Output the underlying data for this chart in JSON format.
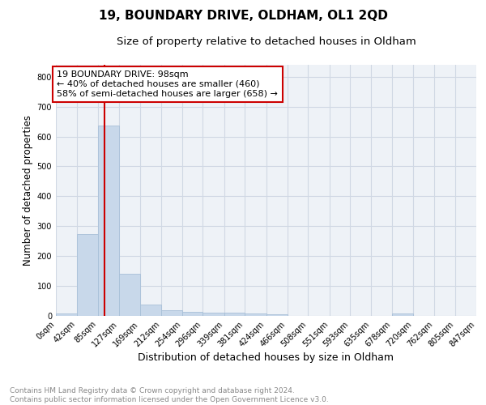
{
  "title": "19, BOUNDARY DRIVE, OLDHAM, OL1 2QD",
  "subtitle": "Size of property relative to detached houses in Oldham",
  "xlabel": "Distribution of detached houses by size in Oldham",
  "ylabel": "Number of detached properties",
  "bar_color": "#c8d8ea",
  "bar_edgecolor": "#a8c0d8",
  "vline_x": 98,
  "vline_color": "#cc0000",
  "annotation_text": "19 BOUNDARY DRIVE: 98sqm\n← 40% of detached houses are smaller (460)\n58% of semi-detached houses are larger (658) →",
  "annotation_box_color": "#ffffff",
  "annotation_box_edgecolor": "#cc0000",
  "bin_edges": [
    0,
    42,
    85,
    127,
    169,
    212,
    254,
    296,
    339,
    381,
    424,
    466,
    508,
    551,
    593,
    635,
    678,
    720,
    762,
    805,
    847
  ],
  "bar_heights": [
    8,
    275,
    638,
    140,
    38,
    20,
    14,
    11,
    10,
    8,
    6,
    0,
    0,
    0,
    0,
    0,
    8,
    0,
    0,
    0
  ],
  "xlim": [
    0,
    847
  ],
  "ylim": [
    0,
    840
  ],
  "yticks": [
    0,
    100,
    200,
    300,
    400,
    500,
    600,
    700,
    800
  ],
  "xtick_labels": [
    "0sqm",
    "42sqm",
    "85sqm",
    "127sqm",
    "169sqm",
    "212sqm",
    "254sqm",
    "296sqm",
    "339sqm",
    "381sqm",
    "424sqm",
    "466sqm",
    "508sqm",
    "551sqm",
    "593sqm",
    "635sqm",
    "678sqm",
    "720sqm",
    "762sqm",
    "805sqm",
    "847sqm"
  ],
  "grid_color": "#d0d8e4",
  "bg_color": "#eef2f7",
  "footer_text": "Contains HM Land Registry data © Crown copyright and database right 2024.\nContains public sector information licensed under the Open Government Licence v3.0.",
  "title_fontsize": 11,
  "subtitle_fontsize": 9.5,
  "ylabel_fontsize": 8.5,
  "xlabel_fontsize": 9,
  "tick_fontsize": 7,
  "annotation_fontsize": 8,
  "footer_fontsize": 6.5
}
